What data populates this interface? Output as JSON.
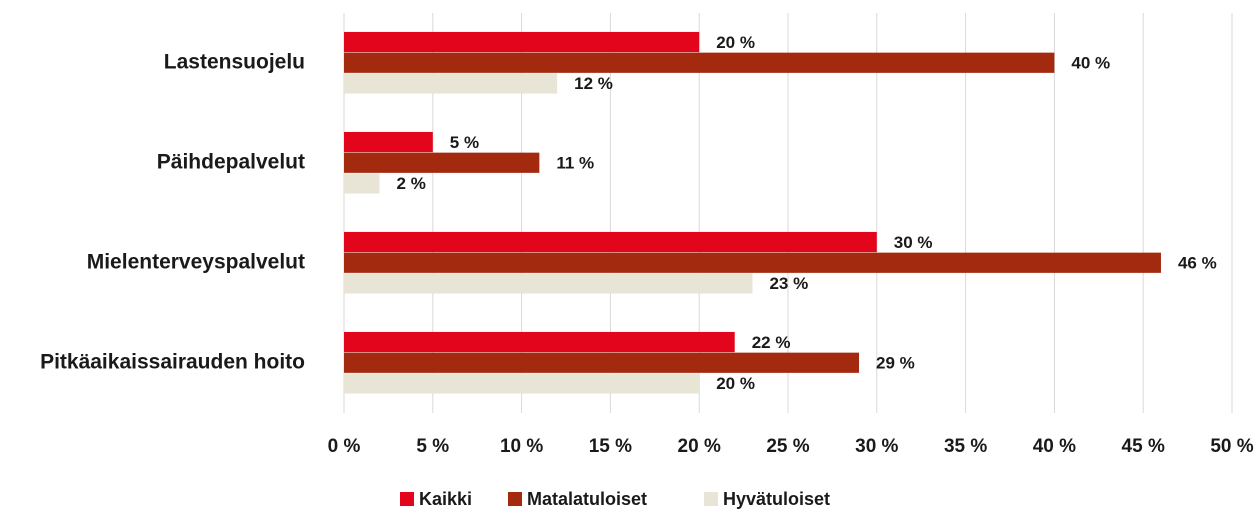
{
  "chart_data": {
    "type": "barh",
    "categories": [
      "Lastensuojelu",
      "Päihdepalvelut",
      "Mielenterveyspalvelut",
      "Pitkäaikaissairauden hoito"
    ],
    "series": [
      {
        "name": "Kaikki",
        "color": "#e3051b",
        "values": [
          20,
          5,
          30,
          22
        ],
        "value_labels": [
          "20 %",
          "5 %",
          "30 %",
          "22 %"
        ]
      },
      {
        "name": "Matalatuloiset",
        "color": "#a3290f",
        "values": [
          40,
          11,
          46,
          29
        ],
        "value_labels": [
          "40 %",
          "11 %",
          "46 %",
          "29 %"
        ]
      },
      {
        "name": "Hyvätuloiset",
        "color": "#e8e4d6",
        "values": [
          12,
          2,
          23,
          20
        ],
        "value_labels": [
          "12 %",
          "2 %",
          "23 %",
          "20 %"
        ]
      }
    ],
    "xlim": [
      0,
      50
    ],
    "xticks": [
      {
        "value": 0,
        "label": "0 %"
      },
      {
        "value": 5,
        "label": "5 %"
      },
      {
        "value": 10,
        "label": "10 %"
      },
      {
        "value": 15,
        "label": "15 %"
      },
      {
        "value": 20,
        "label": "20 %"
      },
      {
        "value": 25,
        "label": "25 %"
      },
      {
        "value": 30,
        "label": "30 %"
      },
      {
        "value": 35,
        "label": "35 %"
      },
      {
        "value": 40,
        "label": "40 %"
      },
      {
        "value": 45,
        "label": "45 %"
      },
      {
        "value": 50,
        "label": "50 %"
      }
    ],
    "grid": true,
    "legend": "bottom"
  }
}
